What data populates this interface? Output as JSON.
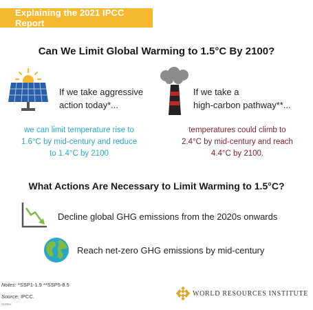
{
  "header": {
    "banner": "Explaining the 2021 IPCC Report",
    "title": "Can We Limit Global Warming to 1.5°C By 2100?"
  },
  "scenarios": [
    {
      "icon": "solar-panel-icon",
      "heading_line1": "If we take aggressive",
      "heading_line2": "action today*...",
      "result_line1": "we can limit temperature rise to",
      "result_line2": "1.6°C by mid-century and reduce",
      "result_line3": "to 1.4°C by 2100",
      "color": "#2aa6c9"
    },
    {
      "icon": "smokestack-icon",
      "heading_line1": "If we take a",
      "heading_line2": "high-carbon pathway**...",
      "result_line1": "temperatures could climb to",
      "result_line2": "2.4°C by mid-century and reach",
      "result_line3": "4.4°C by 2100.",
      "color": "#7a1f2b"
    }
  ],
  "actions_section": {
    "title": "What Actions Are Necessary to Limit Warming to 1.5°C?",
    "items": [
      {
        "icon": "declining-chart-icon",
        "text": "Decline global GHG emissions from the 2020s onwards"
      },
      {
        "icon": "globe-icon",
        "text": "Reach net-zero GHG emissions by mid-century"
      }
    ]
  },
  "footer": {
    "notes_label": "Notes:",
    "notes_text": " *SSP1-1.9  **SSP5-8.5",
    "source_label": "Source:",
    "source_text": " IPCC.",
    "small_code": "2108xx",
    "org_name": "WORLD RESOURCES INSTITUTE"
  },
  "colors": {
    "banner": "#f5b82e",
    "aggressive": "#2aa6c9",
    "high_carbon": "#7a1f2b",
    "chart_green": "#7dbb42",
    "logo_gold": "#e0a526"
  }
}
